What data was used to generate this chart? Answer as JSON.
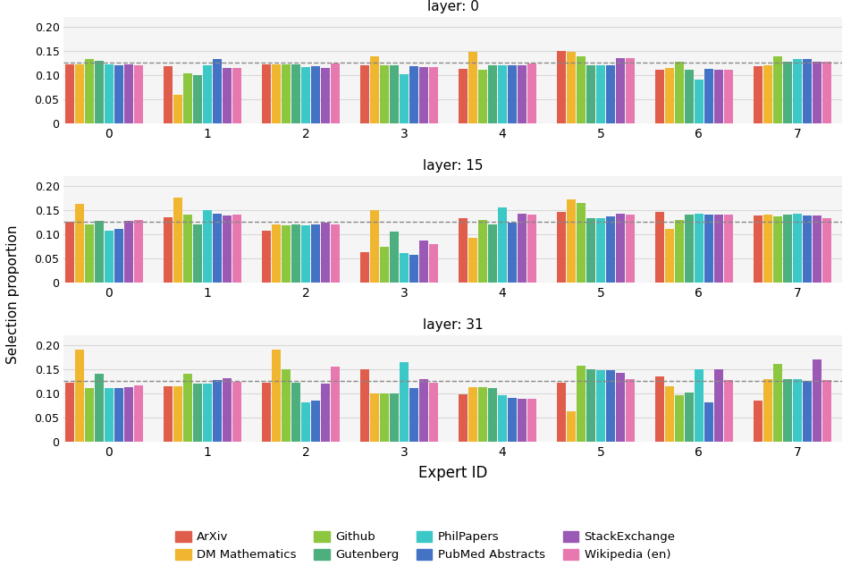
{
  "layers": [
    0,
    15,
    31
  ],
  "layer_titles": [
    "layer: 0",
    "layer: 15",
    "layer: 31"
  ],
  "experts": [
    0,
    1,
    2,
    3,
    4,
    5,
    6,
    7
  ],
  "categories": [
    "ArXiv",
    "DM Mathematics",
    "Github",
    "Gutenberg",
    "PhilPapers",
    "PubMed Abstracts",
    "StackExchange",
    "Wikipedia (en)"
  ],
  "colors": [
    "#e05c4b",
    "#f0b630",
    "#8dc63f",
    "#4caf7d",
    "#3dc8c8",
    "#4472c4",
    "#9b59b6",
    "#e879b0"
  ],
  "uniform_line": 0.125,
  "ylim": [
    0,
    0.22
  ],
  "yticks": [
    0,
    0.05,
    0.1,
    0.15,
    0.2
  ],
  "yticklabels": [
    "0",
    "0.05",
    "0.10",
    "0.15",
    "0.20"
  ],
  "data": {
    "0": {
      "ArXiv": [
        0.122,
        0.118,
        0.122,
        0.12,
        0.113,
        0.149,
        0.11,
        0.118
      ],
      "DM Mathematics": [
        0.122,
        0.059,
        0.122,
        0.139,
        0.147,
        0.147,
        0.115,
        0.12
      ],
      "Github": [
        0.132,
        0.104,
        0.121,
        0.12,
        0.111,
        0.139,
        0.128,
        0.138
      ],
      "Gutenberg": [
        0.13,
        0.099,
        0.121,
        0.12,
        0.12,
        0.12,
        0.11,
        0.127
      ],
      "PhilPapers": [
        0.122,
        0.12,
        0.116,
        0.101,
        0.12,
        0.12,
        0.09,
        0.133
      ],
      "PubMed Abstracts": [
        0.119,
        0.133,
        0.118,
        0.118,
        0.12,
        0.12,
        0.112,
        0.133
      ],
      "StackExchange": [
        0.121,
        0.115,
        0.115,
        0.117,
        0.12,
        0.134,
        0.111,
        0.128
      ],
      "Wikipedia (en)": [
        0.119,
        0.114,
        0.124,
        0.117,
        0.124,
        0.134,
        0.111,
        0.128
      ]
    },
    "15": {
      "ArXiv": [
        0.126,
        0.134,
        0.107,
        0.063,
        0.132,
        0.146,
        0.146,
        0.138
      ],
      "DM Mathematics": [
        0.163,
        0.176,
        0.12,
        0.149,
        0.093,
        0.172,
        0.11,
        0.141
      ],
      "Github": [
        0.12,
        0.14,
        0.118,
        0.073,
        0.13,
        0.165,
        0.129,
        0.137
      ],
      "Gutenberg": [
        0.128,
        0.12,
        0.12,
        0.105,
        0.12,
        0.133,
        0.141,
        0.141
      ],
      "PhilPapers": [
        0.107,
        0.149,
        0.119,
        0.06,
        0.155,
        0.133,
        0.143,
        0.142
      ],
      "PubMed Abstracts": [
        0.111,
        0.143,
        0.12,
        0.057,
        0.123,
        0.137,
        0.14,
        0.139
      ],
      "StackExchange": [
        0.128,
        0.139,
        0.123,
        0.086,
        0.143,
        0.143,
        0.141,
        0.139
      ],
      "Wikipedia (en)": [
        0.13,
        0.14,
        0.12,
        0.08,
        0.14,
        0.141,
        0.14,
        0.133
      ]
    },
    "31": {
      "ArXiv": [
        0.122,
        0.114,
        0.122,
        0.15,
        0.098,
        0.122,
        0.134,
        0.085
      ],
      "DM Mathematics": [
        0.19,
        0.114,
        0.191,
        0.1,
        0.112,
        0.063,
        0.115,
        0.13
      ],
      "Github": [
        0.11,
        0.141,
        0.15,
        0.1,
        0.112,
        0.157,
        0.095,
        0.16
      ],
      "Gutenberg": [
        0.14,
        0.12,
        0.122,
        0.099,
        0.11,
        0.15,
        0.101,
        0.13
      ],
      "PhilPapers": [
        0.11,
        0.12,
        0.081,
        0.165,
        0.095,
        0.147,
        0.15,
        0.13
      ],
      "PubMed Abstracts": [
        0.11,
        0.127,
        0.085,
        0.11,
        0.09,
        0.148,
        0.082,
        0.125
      ],
      "StackExchange": [
        0.112,
        0.132,
        0.12,
        0.13,
        0.088,
        0.143,
        0.15,
        0.17
      ],
      "Wikipedia (en)": [
        0.117,
        0.124,
        0.156,
        0.122,
        0.088,
        0.13,
        0.127,
        0.127
      ]
    }
  },
  "xlabel": "Expert ID",
  "ylabel": "Selection proportion",
  "background_color": "#f5f5f5",
  "grid_color": "#d8d8d8"
}
